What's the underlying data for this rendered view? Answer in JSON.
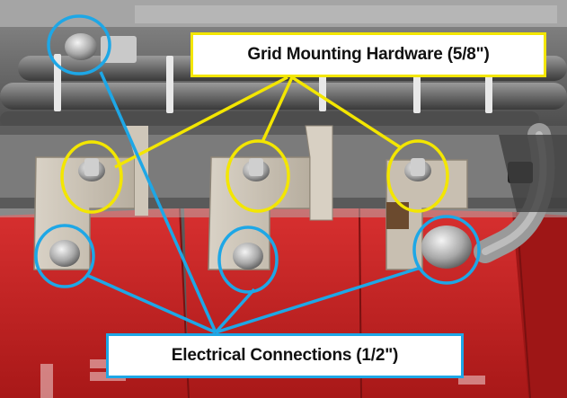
{
  "callouts": {
    "grid_mounting": {
      "label": "Grid Mounting Hardware (5/8\")",
      "color": "#f3e600"
    },
    "electrical_connections": {
      "label": "Electrical Connections (1/2\")",
      "color": "#1ea7e6"
    }
  }
}
